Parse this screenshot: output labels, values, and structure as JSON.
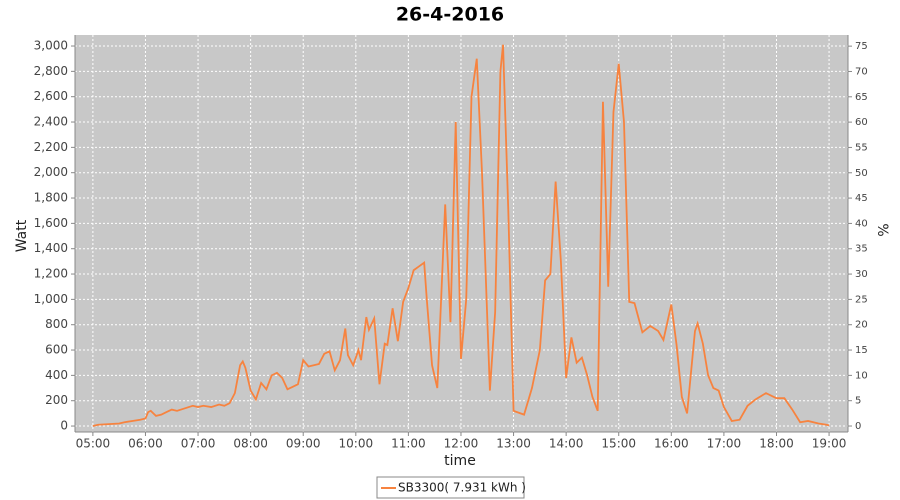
{
  "chart_data": {
    "type": "line",
    "title": "26-4-2016",
    "xlabel": "time",
    "ylabel": "Watt",
    "y2label": "%",
    "xlim": [
      4.66,
      19.36
    ],
    "xticks": [
      {
        "value": 5,
        "label": "05:00"
      },
      {
        "value": 6,
        "label": "06:00"
      },
      {
        "value": 7,
        "label": "07:00"
      },
      {
        "value": 8,
        "label": "08:00"
      },
      {
        "value": 9,
        "label": "09:00"
      },
      {
        "value": 10,
        "label": "10:00"
      },
      {
        "value": 11,
        "label": "11:00"
      },
      {
        "value": 12,
        "label": "12:00"
      },
      {
        "value": 13,
        "label": "13:00"
      },
      {
        "value": 14,
        "label": "14:00"
      },
      {
        "value": 15,
        "label": "15:00"
      },
      {
        "value": 16,
        "label": "16:00"
      },
      {
        "value": 17,
        "label": "17:00"
      },
      {
        "value": 18,
        "label": "18:00"
      },
      {
        "value": 19,
        "label": "19:00"
      }
    ],
    "ylim": [
      -47,
      3087
    ],
    "yticks": [
      0,
      200,
      400,
      600,
      800,
      {
        "value": 1000,
        "label": "1,000"
      },
      {
        "value": 1200,
        "label": "1,200"
      },
      {
        "value": 1400,
        "label": "1,400"
      },
      {
        "value": 1600,
        "label": "1,600"
      },
      {
        "value": 1800,
        "label": "1,800"
      },
      {
        "value": 2000,
        "label": "2,000"
      },
      {
        "value": 2200,
        "label": "2,200"
      },
      {
        "value": 2400,
        "label": "2,400"
      },
      {
        "value": 2600,
        "label": "2,600"
      },
      {
        "value": 2800,
        "label": "2,800"
      },
      {
        "value": 3000,
        "label": "3,000"
      }
    ],
    "y2lim": [
      -1.18,
      77.2
    ],
    "y2ticks": [
      0,
      5,
      10,
      15,
      20,
      25,
      30,
      35,
      40,
      45,
      50,
      55,
      60,
      65,
      70,
      75
    ],
    "grid": true,
    "legend": "bottom",
    "x": [
      5.0,
      5.1,
      5.3,
      5.5,
      5.6,
      5.75,
      5.9,
      6.0,
      6.05,
      6.1,
      6.2,
      6.3,
      6.4,
      6.5,
      6.6,
      6.75,
      6.9,
      7.0,
      7.1,
      7.25,
      7.4,
      7.5,
      7.6,
      7.7,
      7.8,
      7.85,
      7.9,
      8.0,
      8.1,
      8.2,
      8.3,
      8.4,
      8.5,
      8.6,
      8.7,
      8.8,
      8.9,
      9.0,
      9.1,
      9.2,
      9.3,
      9.4,
      9.5,
      9.6,
      9.7,
      9.8,
      9.85,
      9.95,
      10.05,
      10.1,
      10.2,
      10.25,
      10.35,
      10.45,
      10.55,
      10.6,
      10.7,
      10.8,
      10.9,
      11.0,
      11.1,
      11.2,
      11.3,
      11.35,
      11.45,
      11.55,
      11.7,
      11.8,
      11.9,
      12.0,
      12.1,
      12.2,
      12.3,
      12.4,
      12.55,
      12.65,
      12.75,
      12.8,
      12.9,
      13.0,
      13.2,
      13.35,
      13.5,
      13.6,
      13.7,
      13.8,
      13.9,
      14.0,
      14.1,
      14.2,
      14.3,
      14.4,
      14.5,
      14.6,
      14.7,
      14.8,
      14.9,
      15.0,
      15.1,
      15.2,
      15.3,
      15.45,
      15.6,
      15.75,
      15.85,
      16.0,
      16.1,
      16.2,
      16.3,
      16.45,
      16.5,
      16.6,
      16.7,
      16.8,
      16.9,
      17.0,
      17.15,
      17.3,
      17.45,
      17.6,
      17.8,
      17.9,
      18.0,
      18.15,
      18.3,
      18.45,
      18.6,
      18.8,
      18.95,
      19.0
    ],
    "series": [
      {
        "name": "SB3300( 7.931 kWh )",
        "color": "#f7833f",
        "values": [
          0,
          10,
          15,
          20,
          30,
          40,
          50,
          60,
          110,
          120,
          80,
          90,
          110,
          130,
          120,
          140,
          160,
          150,
          160,
          150,
          170,
          160,
          180,
          260,
          480,
          510,
          460,
          280,
          210,
          340,
          290,
          400,
          420,
          380,
          290,
          310,
          330,
          520,
          470,
          480,
          490,
          570,
          590,
          440,
          520,
          770,
          560,
          480,
          600,
          520,
          860,
          760,
          850,
          330,
          650,
          640,
          930,
          670,
          980,
          1090,
          1230,
          1260,
          1290,
          1000,
          480,
          300,
          1750,
          820,
          2400,
          530,
          1000,
          2600,
          2900,
          2000,
          280,
          900,
          2800,
          3010,
          1700,
          120,
          90,
          300,
          600,
          1150,
          1200,
          1930,
          1300,
          380,
          700,
          500,
          540,
          400,
          230,
          120,
          2560,
          1100,
          2480,
          2860,
          2400,
          980,
          970,
          740,
          790,
          750,
          680,
          960,
          640,
          230,
          100,
          750,
          810,
          650,
          400,
          300,
          280,
          150,
          40,
          50,
          160,
          210,
          260,
          240,
          220,
          220,
          130,
          30,
          40,
          20,
          10,
          5
        ]
      }
    ]
  }
}
